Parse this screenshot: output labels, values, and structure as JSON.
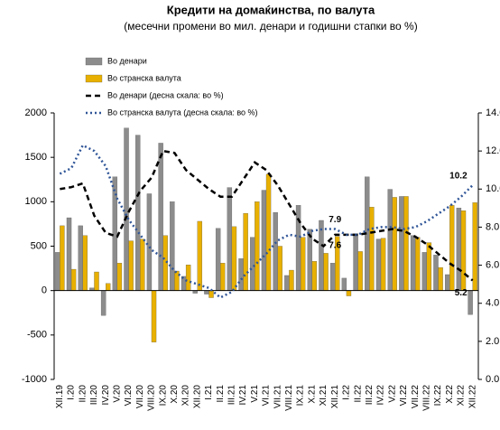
{
  "chart_data": {
    "type": "bar_line",
    "title": "Кредити на домаќинства, по валута",
    "subtitle": "(месечни промени во мил. денари и годишни стапки во %)",
    "categories": [
      "XII.19",
      "I.20",
      "II.20",
      "III.20",
      "IV.20",
      "V.20",
      "VI.20",
      "VII.20",
      "VIII.20",
      "IX.20",
      "X.20",
      "XI.20",
      "XII.20",
      "I.21",
      "II.21",
      "III.21",
      "IV.21",
      "V.21",
      "VI.21",
      "VII.21",
      "VIII.21",
      "IX.21",
      "X.21",
      "XI.21",
      "XII.21",
      "I.22",
      "II.22",
      "III.22",
      "IV.22",
      "V.22",
      "VI.22",
      "VII.22",
      "VIII.22",
      "IX.22",
      "X.22",
      "XI.22",
      "XII.22"
    ],
    "ylim": [
      -1000,
      2000
    ],
    "yticks": [
      -1000,
      -500,
      0,
      500,
      1000,
      1500,
      2000
    ],
    "y2lim": [
      0,
      14
    ],
    "y2ticks": [
      {
        "value": 0,
        "label": "0.0"
      },
      {
        "value": 2,
        "label": "2.0"
      },
      {
        "value": 4,
        "label": "4.0"
      },
      {
        "value": 6,
        "label": "6.0"
      },
      {
        "value": 8,
        "label": "8.0"
      },
      {
        "value": 10,
        "label": "10.0"
      },
      {
        "value": 12,
        "label": "12.0"
      },
      {
        "value": 14,
        "label": "14.0"
      }
    ],
    "grid": false,
    "series": [
      {
        "name": "Во денари",
        "kind": "bar",
        "color": "#8c8c8c",
        "values": [
          430,
          820,
          730,
          30,
          -280,
          1280,
          1830,
          1750,
          1090,
          1660,
          1000,
          160,
          -30,
          -40,
          700,
          1160,
          360,
          600,
          1130,
          880,
          170,
          960,
          690,
          790,
          310,
          140,
          640,
          1280,
          580,
          1140,
          1060,
          620,
          430,
          400,
          180,
          930,
          -270
        ]
      },
      {
        "name": "Во странска валута",
        "kind": "bar",
        "color": "#e8b000",
        "values": [
          730,
          240,
          620,
          210,
          80,
          310,
          560,
          580,
          -580,
          620,
          220,
          290,
          780,
          -80,
          310,
          720,
          870,
          1000,
          1310,
          500,
          230,
          600,
          330,
          420,
          610,
          -60,
          440,
          940,
          590,
          1050,
          1060,
          600,
          540,
          260,
          960,
          900,
          990
        ]
      },
      {
        "name": "Во денари  (десна скала: во %)",
        "kind": "line",
        "axis": "y2",
        "color": "#000000",
        "dash": "6,4",
        "values": [
          10.0,
          10.1,
          10.3,
          8.6,
          7.7,
          7.5,
          8.8,
          9.9,
          10.6,
          12.0,
          11.9,
          11.0,
          10.5,
          10.0,
          9.6,
          9.6,
          10.5,
          11.4,
          11.0,
          10.2,
          9.2,
          8.2,
          7.4,
          7.0,
          7.6,
          7.6,
          7.6,
          7.7,
          7.8,
          7.9,
          7.8,
          7.5,
          7.1,
          6.6,
          6.1,
          5.7,
          5.2
        ],
        "value_labels": [
          null,
          null,
          null,
          null,
          null,
          null,
          null,
          null,
          null,
          null,
          null,
          null,
          null,
          null,
          null,
          null,
          null,
          null,
          null,
          null,
          null,
          null,
          null,
          null,
          "7.6",
          null,
          null,
          null,
          null,
          null,
          null,
          null,
          null,
          null,
          null,
          null,
          "5.2"
        ]
      },
      {
        "name": "Во странска валута  (десна скала: во %)",
        "kind": "line",
        "axis": "y2",
        "color": "#2f5597",
        "dash": "2,3",
        "values": [
          10.8,
          11.1,
          12.3,
          12.0,
          11.2,
          9.5,
          8.4,
          7.6,
          6.8,
          6.4,
          5.7,
          5.2,
          5.0,
          4.8,
          4.3,
          4.6,
          5.4,
          6.0,
          6.6,
          7.3,
          7.6,
          7.5,
          7.8,
          7.9,
          7.9,
          7.6,
          7.6,
          7.9,
          8.0,
          8.0,
          7.9,
          8.0,
          8.3,
          8.7,
          9.1,
          9.6,
          10.2
        ],
        "value_labels": [
          null,
          null,
          null,
          null,
          null,
          null,
          null,
          null,
          null,
          null,
          null,
          null,
          null,
          null,
          null,
          null,
          null,
          null,
          null,
          null,
          null,
          null,
          null,
          null,
          "7.9",
          null,
          null,
          null,
          null,
          null,
          null,
          null,
          null,
          null,
          null,
          null,
          "10.2"
        ]
      }
    ]
  }
}
